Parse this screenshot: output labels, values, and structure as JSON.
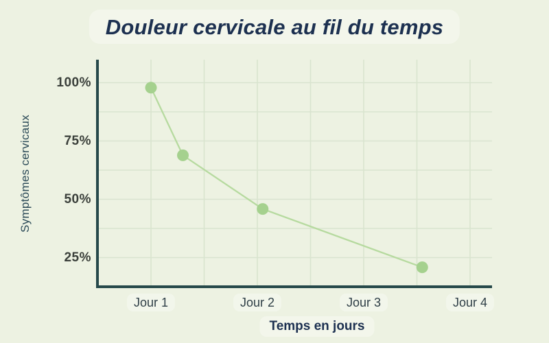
{
  "title": "Douleur cervicale au fil du temps",
  "colors": {
    "background": "#edf2e2",
    "title_navy": "#1c3050",
    "axis_teal": "#26494a",
    "gridline": "#d9e4cf",
    "point_green": "#a5d18e",
    "line_green": "#b6da9f",
    "y_tick_color": "#3a3f3a",
    "x_tick_color": "#2e3e46",
    "y_title_color": "#2b4a57"
  },
  "chart_data": {
    "type": "line",
    "title": "Douleur cervicale au fil du temps",
    "xlabel": "Temps en jours",
    "ylabel": "Symptômes cervicaux",
    "x_ticks": [
      {
        "label": "Jour 1",
        "day": 1
      },
      {
        "label": "Jour 2",
        "day": 2
      },
      {
        "label": "Jour 3",
        "day": 3
      },
      {
        "label": "Jour 4",
        "day": 4
      }
    ],
    "y_ticks": [
      {
        "label": "100%",
        "value": 100
      },
      {
        "label": "75%",
        "value": 75
      },
      {
        "label": "50%",
        "value": 50
      },
      {
        "label": "25%",
        "value": 25
      }
    ],
    "points": [
      {
        "day": 1.0,
        "pct": 98
      },
      {
        "day": 1.3,
        "pct": 69
      },
      {
        "day": 2.05,
        "pct": 46
      },
      {
        "day": 3.55,
        "pct": 21
      }
    ],
    "x_range_days": [
      0.5,
      4.2
    ],
    "y_range_pct": [
      12.5,
      110
    ],
    "grid": true,
    "grid_step_days": 0.5,
    "grid_step_pct": 12.5,
    "legend": false
  }
}
